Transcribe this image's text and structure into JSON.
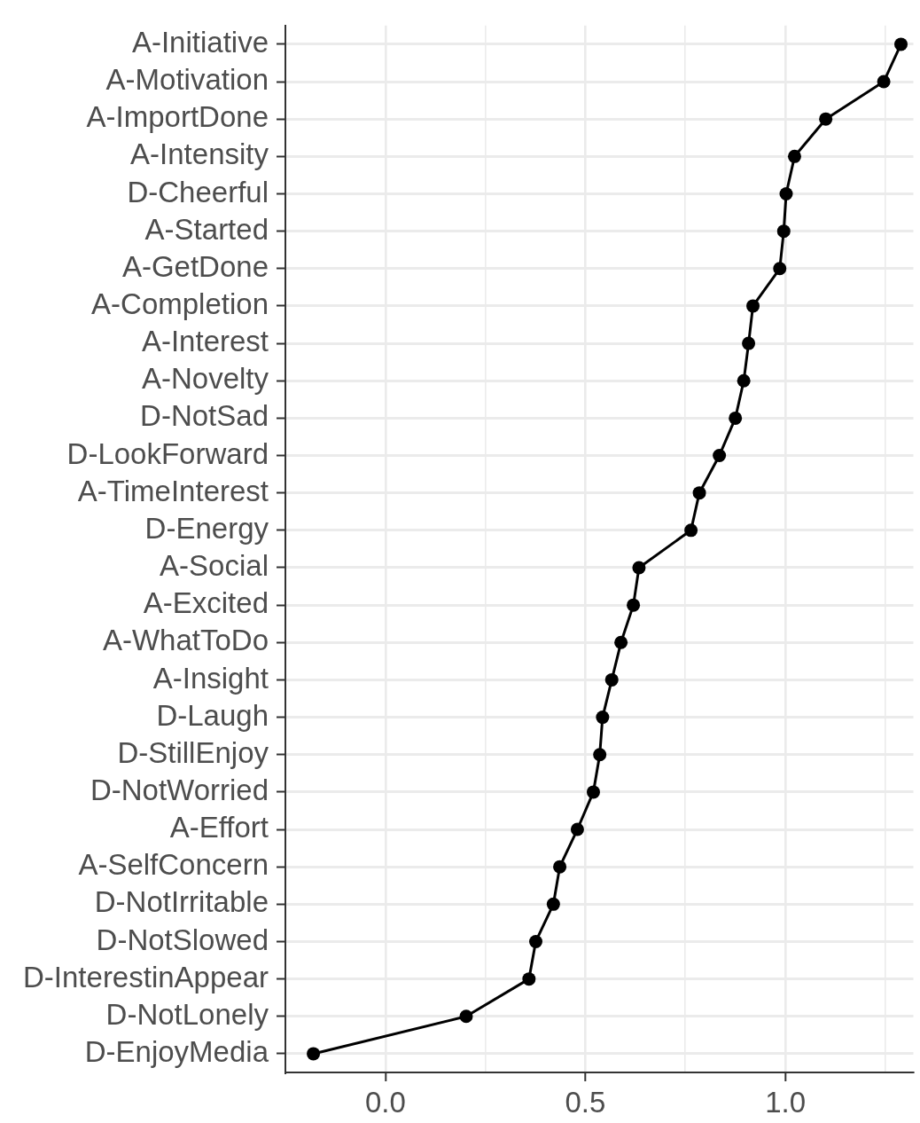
{
  "chart_data": {
    "type": "line",
    "orientation": "horizontal",
    "categories": [
      "A-Initiative",
      "A-Motivation",
      "A-ImportDone",
      "A-Intensity",
      "D-Cheerful",
      "A-Started",
      "A-GetDone",
      "A-Completion",
      "A-Interest",
      "A-Novelty",
      "D-NotSad",
      "D-LookForward",
      "A-TimeInterest",
      "D-Energy",
      "A-Social",
      "A-Excited",
      "A-WhatToDo",
      "A-Insight",
      "D-Laugh",
      "D-StillEnjoy",
      "D-NotWorried",
      "A-Effort",
      "A-SelfConcern",
      "D-NotIrritable",
      "D-NotSlowed",
      "D-InterestinAppear",
      "D-NotLonely",
      "D-EnjoyMedia"
    ],
    "values": [
      1.289,
      1.246,
      1.101,
      1.023,
      1.002,
      0.996,
      0.986,
      0.919,
      0.908,
      0.896,
      0.875,
      0.835,
      0.785,
      0.764,
      0.634,
      0.62,
      0.589,
      0.566,
      0.543,
      0.536,
      0.52,
      0.48,
      0.436,
      0.42,
      0.376,
      0.359,
      0.202,
      -0.18
    ],
    "color": "#000000",
    "xlim": [
      -0.25,
      1.32
    ],
    "xticks": [
      {
        "value": 0,
        "label": "0.0"
      },
      {
        "value": 0.25,
        "label": null
      },
      {
        "value": 0.5,
        "label": "0.5"
      },
      {
        "value": 0.75,
        "label": null
      },
      {
        "value": 1,
        "label": "1.0"
      },
      {
        "value": 1.25,
        "label": null
      }
    ],
    "grid": true,
    "marker": "circle",
    "line_style": "solid"
  }
}
